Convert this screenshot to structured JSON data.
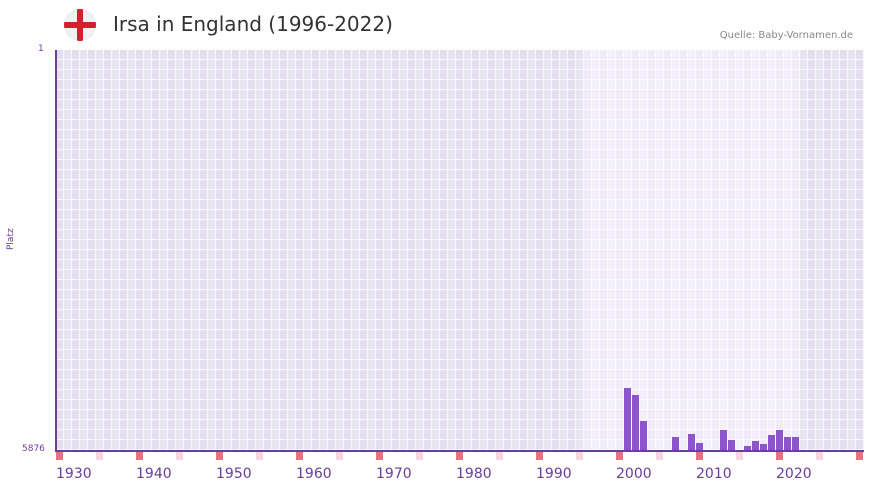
{
  "header": {
    "title": "Irsa in England (1996-2022)",
    "source": "Quelle: Baby-Vornamen.de",
    "flag_icon": "england-flag-icon"
  },
  "colors": {
    "bar": "#8e54c9",
    "axis": "#6a3d9a",
    "decade_marker": "#e5737e",
    "half_decade_marker": "#f5d5df",
    "bg_outside": "#e3dff0",
    "bg_outside_alt": "#e8e5f2",
    "bg_inside": "#efebf9",
    "bg_inside_alt": "#f3f0fb"
  },
  "chart_data": {
    "type": "bar",
    "title": "Irsa in England (1996-2022)",
    "xlabel": "",
    "ylabel": "Platz",
    "y_inverted": true,
    "ylim": [
      1,
      5876
    ],
    "y_ticks": [
      "1",
      "5876"
    ],
    "x_range": [
      1930,
      2030
    ],
    "x_ticks": [
      "1930",
      "1940",
      "1950",
      "1960",
      "1970",
      "1980",
      "1990",
      "2000",
      "2010",
      "2020"
    ],
    "highlight_range": [
      1996,
      2022
    ],
    "grid": true,
    "categories": [
      2001,
      2002,
      2003,
      2007,
      2009,
      2010,
      2013,
      2014,
      2016,
      2017,
      2018,
      2019,
      2020,
      2021,
      2022
    ],
    "values": [
      4965,
      5067,
      5449,
      5684,
      5640,
      5772,
      5582,
      5729,
      5817,
      5743,
      5787,
      5655,
      5582,
      5684,
      5684
    ]
  },
  "axis": {
    "y_top_label": "1",
    "y_bottom_label": "5876",
    "y_title": "Platz"
  }
}
